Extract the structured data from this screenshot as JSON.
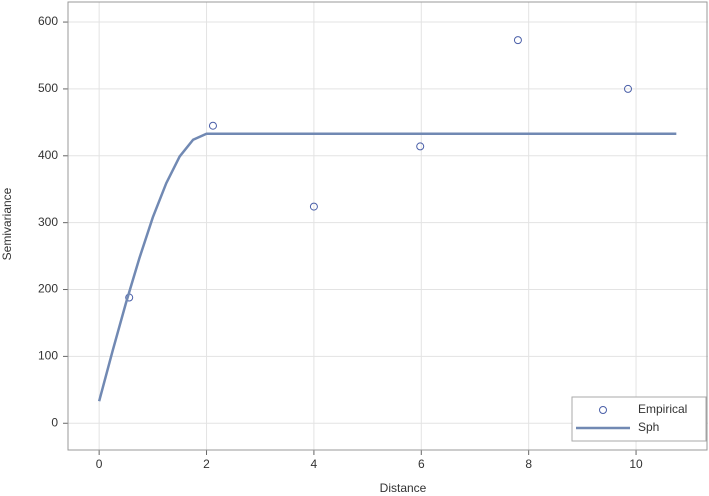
{
  "chart_data": {
    "type": "scatter",
    "xlabel": "Distance",
    "ylabel": "Semivariance",
    "xlim": [
      -0.58,
      11.34
    ],
    "ylim": [
      -40,
      630
    ],
    "xticks": [
      0,
      2,
      4,
      6,
      8,
      10
    ],
    "yticks": [
      0,
      100,
      200,
      300,
      400,
      500,
      600
    ],
    "grid": true,
    "legend": "lower right",
    "series": [
      {
        "name": "Empirical",
        "type": "scatter",
        "color": "#4a5fa8",
        "x": [
          0.56,
          2.12,
          4.0,
          5.98,
          7.8,
          9.85
        ],
        "values": [
          188,
          445,
          324,
          414,
          573,
          500
        ]
      },
      {
        "name": "Sph",
        "type": "line",
        "color": "#7189b3",
        "x": [
          0,
          0.25,
          0.5,
          0.75,
          1,
          1.25,
          1.5,
          1.75,
          2,
          10.75
        ],
        "values": [
          33,
          108,
          180,
          247,
          308,
          359,
          399,
          424,
          433,
          433
        ]
      }
    ]
  }
}
